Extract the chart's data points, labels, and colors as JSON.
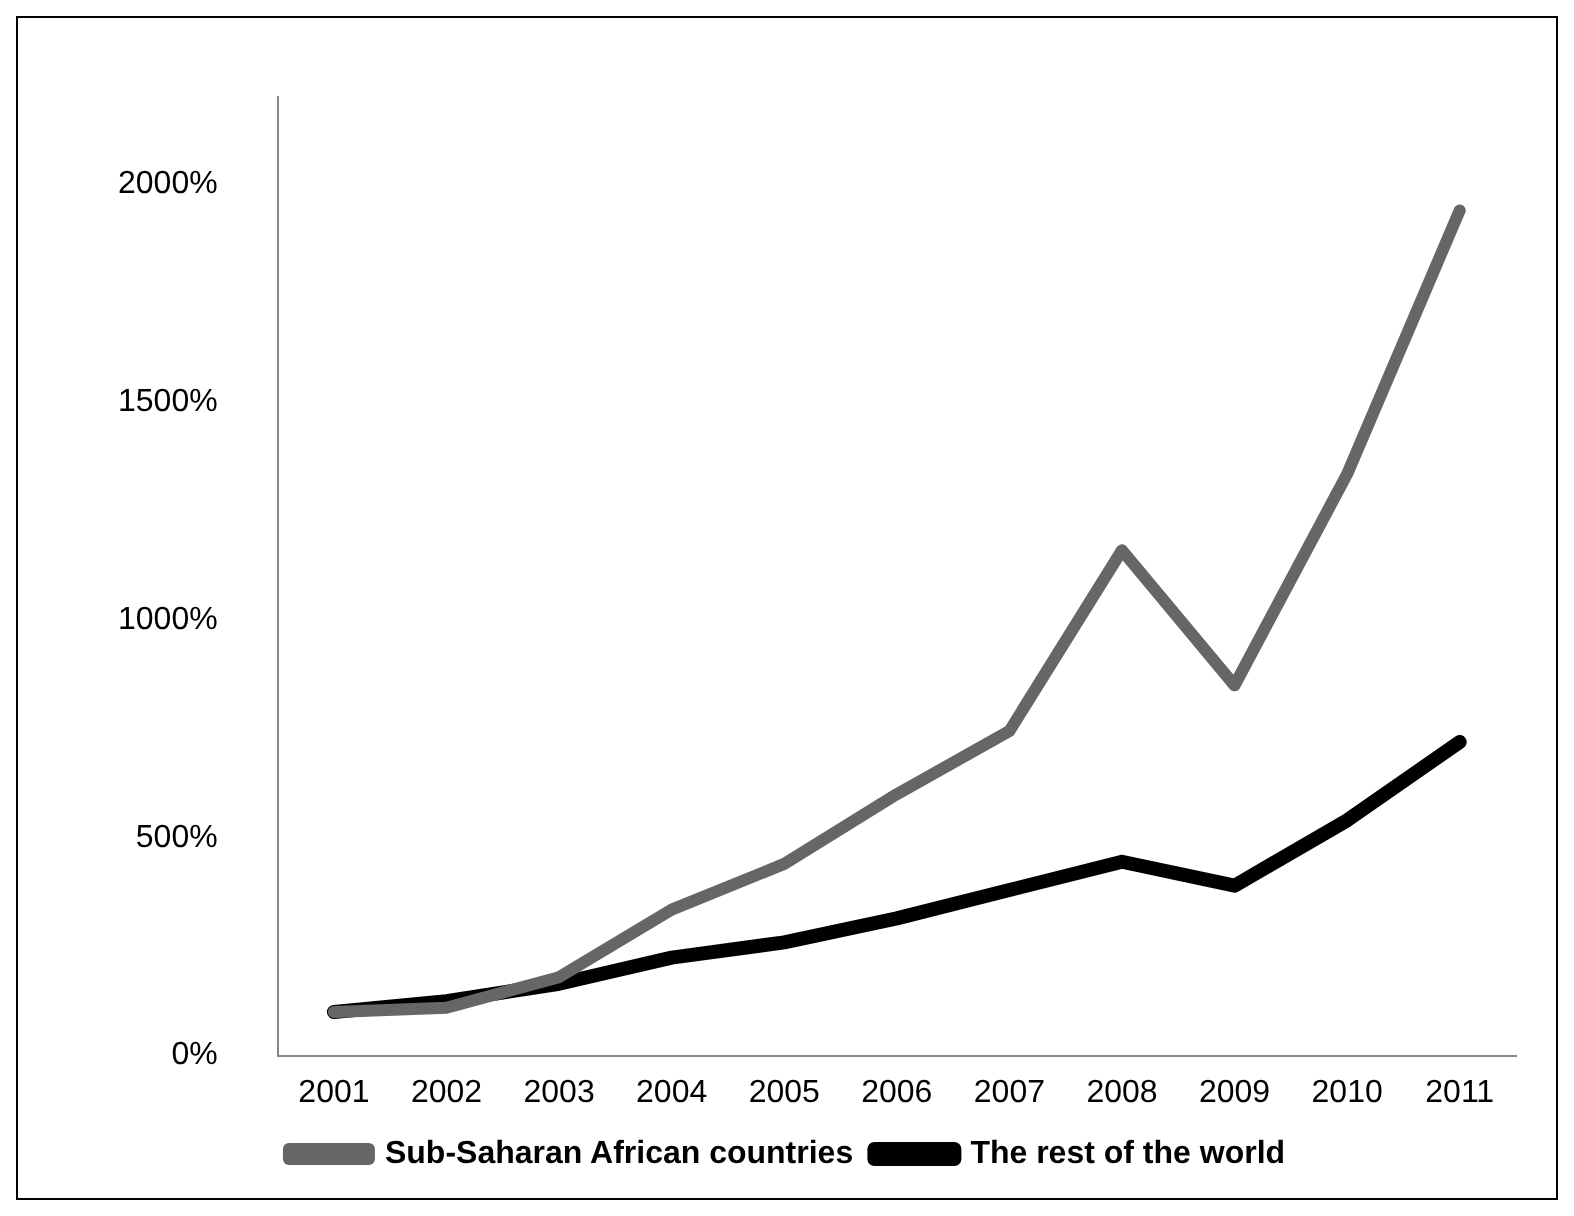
{
  "chart_data": {
    "type": "line",
    "categories": [
      "2001",
      "2002",
      "2003",
      "2004",
      "2005",
      "2006",
      "2007",
      "2008",
      "2009",
      "2010",
      "2011"
    ],
    "series": [
      {
        "name": "Sub-Saharan African countries",
        "color": "#666666",
        "values": [
          100,
          110,
          180,
          335,
          440,
          600,
          745,
          1160,
          850,
          1335,
          1940
        ]
      },
      {
        "name": "The rest of the world",
        "color": "#000000",
        "values": [
          100,
          125,
          165,
          225,
          260,
          315,
          380,
          445,
          390,
          540,
          720
        ]
      }
    ],
    "ylim": [
      0,
      2200
    ],
    "yticks": [
      {
        "value": 0,
        "label": "0%"
      },
      {
        "value": 500,
        "label": "500%"
      },
      {
        "value": 1000,
        "label": "1000%"
      },
      {
        "value": 1500,
        "label": "1500%"
      },
      {
        "value": 2000,
        "label": "2000%"
      }
    ],
    "grid": false,
    "legend": "bottom",
    "marker": "none",
    "line_style": "solid"
  }
}
